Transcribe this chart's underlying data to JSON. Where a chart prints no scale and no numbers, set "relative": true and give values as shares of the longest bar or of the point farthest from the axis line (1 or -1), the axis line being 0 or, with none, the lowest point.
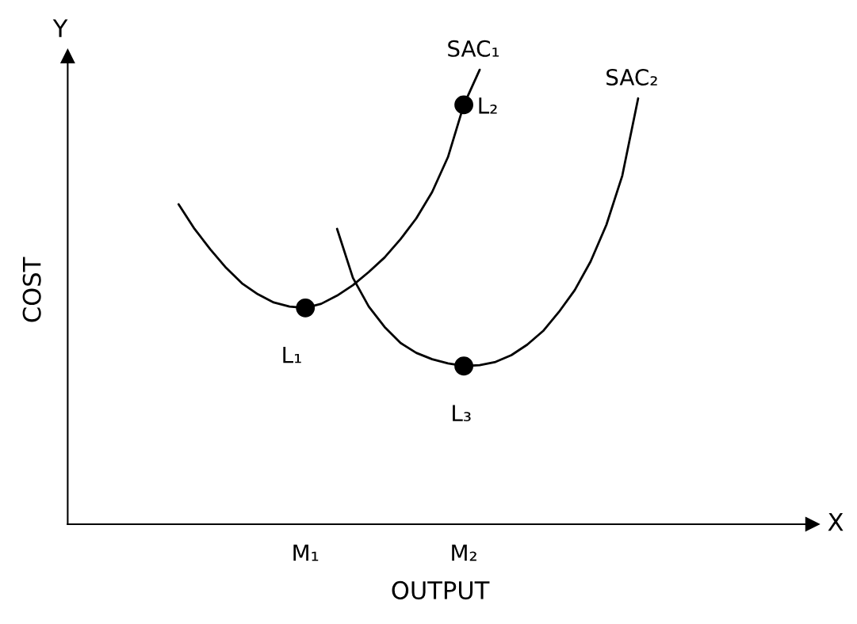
{
  "chart_data": {
    "type": "line",
    "relative": true,
    "xlabel": "OUTPUT",
    "ylabel": "COST",
    "categories": [
      null,
      null,
      null,
      null,
      null,
      null,
      null,
      null,
      null,
      null,
      null,
      null,
      null,
      null,
      null,
      "M₁",
      null,
      null,
      null,
      null,
      null,
      null,
      null,
      null,
      null,
      "M₂",
      null,
      null,
      null,
      null,
      null,
      null,
      null,
      null,
      null,
      null,
      null,
      null,
      null,
      null,
      null,
      null,
      null,
      null,
      null,
      null,
      null,
      null
    ],
    "tick_labels": "x",
    "grid": false,
    "legend": false,
    "marker": "none",
    "line_style": "solid",
    "series": [
      {
        "name": "SAC₁",
        "color": "#000000",
        "values": [
          null,
          null,
          null,
          null,
          null,
          null,
          null,
          0.704,
          0.65,
          0.605,
          0.564,
          0.53,
          0.506,
          0.488,
          0.479,
          0.476,
          0.485,
          0.503,
          0.526,
          0.555,
          0.587,
          0.627,
          0.673,
          0.731,
          0.808,
          0.923,
          1.0,
          null,
          null,
          null,
          null,
          null,
          null,
          null,
          null,
          null,
          null,
          null,
          null,
          null,
          null,
          null,
          null,
          null,
          null,
          null,
          null,
          null
        ]
      },
      {
        "name": "SAC₂",
        "color": "#000000",
        "values": [
          null,
          null,
          null,
          null,
          null,
          null,
          null,
          null,
          null,
          null,
          null,
          null,
          null,
          null,
          null,
          null,
          null,
          0.65,
          0.542,
          0.479,
          0.434,
          0.399,
          0.377,
          0.363,
          0.354,
          0.348,
          0.35,
          0.357,
          0.372,
          0.395,
          0.425,
          0.467,
          0.515,
          0.578,
          0.659,
          0.767,
          0.937,
          null,
          null,
          null,
          null,
          null,
          null,
          null,
          null,
          null,
          null,
          null
        ]
      },
      {
        "type": "scatter",
        "marker": "circle",
        "color": "#000000",
        "x": [
          "M₁",
          "M₂",
          "M₂"
        ],
        "values": [
          0.476,
          0.923,
          0.348
        ]
      }
    ],
    "annotations": [
      {
        "text": "L₁",
        "x": "M₁",
        "y": 0.476
      },
      {
        "text": "L₂",
        "x": "M₂",
        "y": 0.923
      },
      {
        "text": "L₃",
        "x": "M₂",
        "y": 0.348
      },
      "X",
      "Y"
    ]
  }
}
